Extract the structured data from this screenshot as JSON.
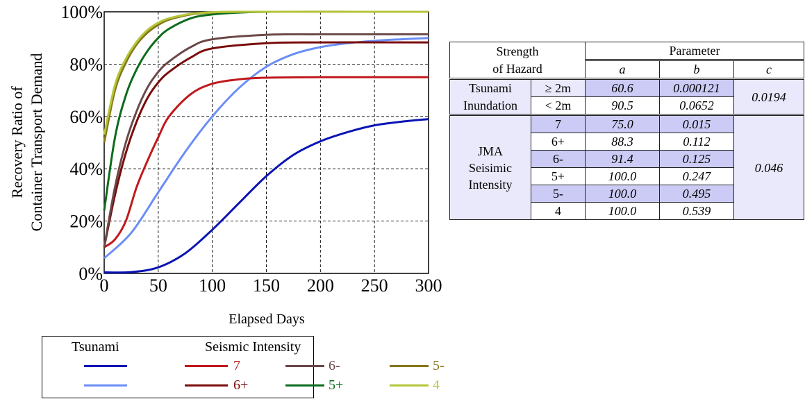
{
  "chart_data": {
    "type": "line",
    "xlabel": "Elapsed Days",
    "ylabel_line1": "Recovery Ratio of",
    "ylabel_line2": "Container Transport Demand",
    "xlim": [
      0,
      300
    ],
    "ylim": [
      0,
      100
    ],
    "x_ticks": [
      "0",
      "50",
      "100",
      "150",
      "200",
      "250",
      "300"
    ],
    "y_ticks": [
      "0%",
      "20%",
      "40%",
      "60%",
      "80%",
      "100%"
    ],
    "grid": true,
    "series": [
      {
        "group": "Tsunami",
        "color": "#0a14b4",
        "x": [
          0,
          25,
          50,
          75,
          100,
          125,
          150,
          175,
          200,
          225,
          250,
          275,
          300
        ],
        "y": [
          0.4,
          0.5,
          2.3,
          7.7,
          16.7,
          27.0,
          37.2,
          45.3,
          50.5,
          54.0,
          56.6,
          58.0,
          59.0
        ]
      },
      {
        "group": "Tsunami",
        "color": "#6a8ef5",
        "x": [
          0,
          25,
          50,
          75,
          100,
          125,
          150,
          175,
          200,
          225,
          250,
          275,
          300
        ],
        "y": [
          5.8,
          15.5,
          31.0,
          46.5,
          60.0,
          71.0,
          79.0,
          83.8,
          86.5,
          88.0,
          88.9,
          89.5,
          90.0
        ]
      },
      {
        "name": "7",
        "color": "#c0191d",
        "x": [
          0,
          10,
          20,
          30,
          40,
          50,
          60,
          80,
          100,
          125,
          150,
          200,
          300
        ],
        "y": [
          10.0,
          13.0,
          20.0,
          33.0,
          43.0,
          52.0,
          60.0,
          68.5,
          72.5,
          74.2,
          74.8,
          75.0,
          75.0
        ]
      },
      {
        "name": "6+",
        "color": "#7a0c0c",
        "x": [
          0,
          10,
          20,
          30,
          40,
          50,
          60,
          80,
          100,
          150,
          200,
          300
        ],
        "y": [
          10.0,
          30.0,
          46.0,
          58.0,
          67.0,
          73.0,
          77.0,
          82.5,
          86.0,
          88.0,
          88.3,
          88.3
        ]
      },
      {
        "name": "6-",
        "color": "#6b4848",
        "x": [
          0,
          10,
          20,
          30,
          40,
          50,
          60,
          80,
          100,
          150,
          200,
          300
        ],
        "y": [
          10.0,
          33.0,
          50.0,
          62.0,
          71.0,
          77.0,
          81.0,
          86.5,
          89.5,
          91.2,
          91.4,
          91.4
        ]
      },
      {
        "name": "5+",
        "color": "#0c6c1c",
        "x": [
          0,
          10,
          20,
          30,
          40,
          50,
          60,
          80,
          100,
          130,
          160,
          300
        ],
        "y": [
          24.0,
          52.0,
          68.0,
          78.0,
          85.0,
          90.0,
          93.5,
          97.5,
          99.0,
          99.8,
          100.0,
          100.0
        ]
      },
      {
        "name": "5-",
        "color": "#87761a",
        "x": [
          0,
          10,
          20,
          30,
          40,
          50,
          60,
          80,
          100,
          130,
          300
        ],
        "y": [
          50.0,
          70.0,
          80.5,
          87.5,
          92.0,
          95.0,
          97.0,
          99.0,
          99.7,
          100.0,
          100.0
        ]
      },
      {
        "name": "4",
        "color": "#b4c63a",
        "x": [
          0,
          10,
          20,
          30,
          40,
          50,
          60,
          80,
          100,
          130,
          300
        ],
        "y": [
          53.0,
          72.0,
          82.0,
          88.5,
          93.0,
          95.8,
          97.5,
          99.2,
          99.8,
          100.0,
          100.0
        ]
      }
    ]
  },
  "legend": {
    "tsunami_header": "Tsunami",
    "seismic_header": "Seismic Intensity",
    "items": [
      {
        "label": "7",
        "color": "#c0191d",
        "text_color": "#c0191d"
      },
      {
        "label": "6-",
        "color": "#6b4848",
        "text_color": "#6b4848"
      },
      {
        "label": "5-",
        "color": "#87761a",
        "text_color": "#87761a"
      },
      {
        "label": "6+",
        "color": "#7a0c0c",
        "text_color": "#7a0c0c"
      },
      {
        "label": "5+",
        "color": "#0c6c1c",
        "text_color": "#0c6c1c"
      },
      {
        "label": "4",
        "color": "#b4c63a",
        "text_color": "#b4c63a"
      }
    ]
  },
  "table": {
    "strength_line1": "Strength",
    "strength_line2": "of Hazard",
    "parameter": "Parameter",
    "col_a": "a",
    "col_b": "b",
    "col_c": "c",
    "tsunami_line1": "Tsunami",
    "tsunami_line2": "Inundation",
    "tsunami_rows": [
      {
        "level": "≥ 2m",
        "a": "60.6",
        "b": "0.000121"
      },
      {
        "level": "< 2m",
        "a": "90.5",
        "b": "0.0652"
      }
    ],
    "tsunami_c": "0.0194",
    "jma_line1": "JMA",
    "jma_line2": "Seisimic",
    "jma_line3": "Intensity",
    "jma_rows": [
      {
        "level": "7",
        "a": "75.0",
        "b": "0.015"
      },
      {
        "level": "6+",
        "a": "88.3",
        "b": "0.112"
      },
      {
        "level": "6-",
        "a": "91.4",
        "b": "0.125"
      },
      {
        "level": "5+",
        "a": "100.0",
        "b": "0.247"
      },
      {
        "level": "5-",
        "a": "100.0",
        "b": "0.495"
      },
      {
        "level": "4",
        "a": "100.0",
        "b": "0.539"
      }
    ],
    "jma_c": "0.046"
  }
}
